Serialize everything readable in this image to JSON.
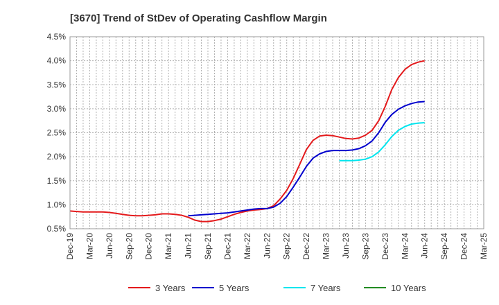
{
  "chart_data": {
    "type": "line",
    "title": "[3670]  Trend of StDev of Operating Cashflow Margin",
    "xlabel": "",
    "ylabel": "",
    "x_ticks": [
      "Dec-19",
      "Mar-20",
      "Jun-20",
      "Sep-20",
      "Dec-20",
      "Mar-21",
      "Jun-21",
      "Sep-21",
      "Dec-21",
      "Mar-22",
      "Jun-22",
      "Sep-22",
      "Dec-22",
      "Mar-23",
      "Jun-23",
      "Sep-23",
      "Dec-23",
      "Mar-24",
      "Jun-24",
      "Sep-24",
      "Dec-24",
      "Mar-25"
    ],
    "y_ticks": [
      "0.5%",
      "1.0%",
      "1.5%",
      "2.0%",
      "2.5%",
      "3.0%",
      "3.5%",
      "4.0%",
      "4.5%"
    ],
    "ylim": [
      0.5,
      4.5
    ],
    "y_unit": "%",
    "grid": true,
    "legend_position": "bottom",
    "series": [
      {
        "name": "3 Years",
        "color": "#e41a1c",
        "start_index": 0,
        "values": [
          0.87,
          0.86,
          0.85,
          0.85,
          0.85,
          0.85,
          0.84,
          0.82,
          0.8,
          0.78,
          0.77,
          0.77,
          0.78,
          0.79,
          0.81,
          0.81,
          0.8,
          0.78,
          0.74,
          0.68,
          0.65,
          0.65,
          0.67,
          0.7,
          0.75,
          0.8,
          0.84,
          0.87,
          0.89,
          0.9,
          0.92,
          0.98,
          1.12,
          1.3,
          1.55,
          1.85,
          2.15,
          2.34,
          2.43,
          2.45,
          2.44,
          2.41,
          2.38,
          2.37,
          2.39,
          2.45,
          2.55,
          2.75,
          3.05,
          3.4,
          3.65,
          3.82,
          3.92,
          3.97,
          4.0
        ]
      },
      {
        "name": "5 Years",
        "color": "#0000cd",
        "start_index": 18,
        "values": [
          0.77,
          0.78,
          0.79,
          0.8,
          0.81,
          0.82,
          0.83,
          0.85,
          0.87,
          0.89,
          0.91,
          0.92,
          0.92,
          0.95,
          1.03,
          1.17,
          1.37,
          1.58,
          1.8,
          1.97,
          2.06,
          2.11,
          2.13,
          2.13,
          2.13,
          2.14,
          2.17,
          2.23,
          2.33,
          2.5,
          2.72,
          2.88,
          2.99,
          3.06,
          3.11,
          3.14,
          3.15
        ]
      },
      {
        "name": "7 Years",
        "color": "#00e5ee",
        "start_index": 41,
        "values": [
          1.92,
          1.92,
          1.92,
          1.93,
          1.95,
          2.0,
          2.1,
          2.25,
          2.42,
          2.55,
          2.63,
          2.68,
          2.7,
          2.71
        ]
      },
      {
        "name": "10 Years",
        "color": "#228b22",
        "start_index": 0,
        "values": []
      }
    ]
  }
}
